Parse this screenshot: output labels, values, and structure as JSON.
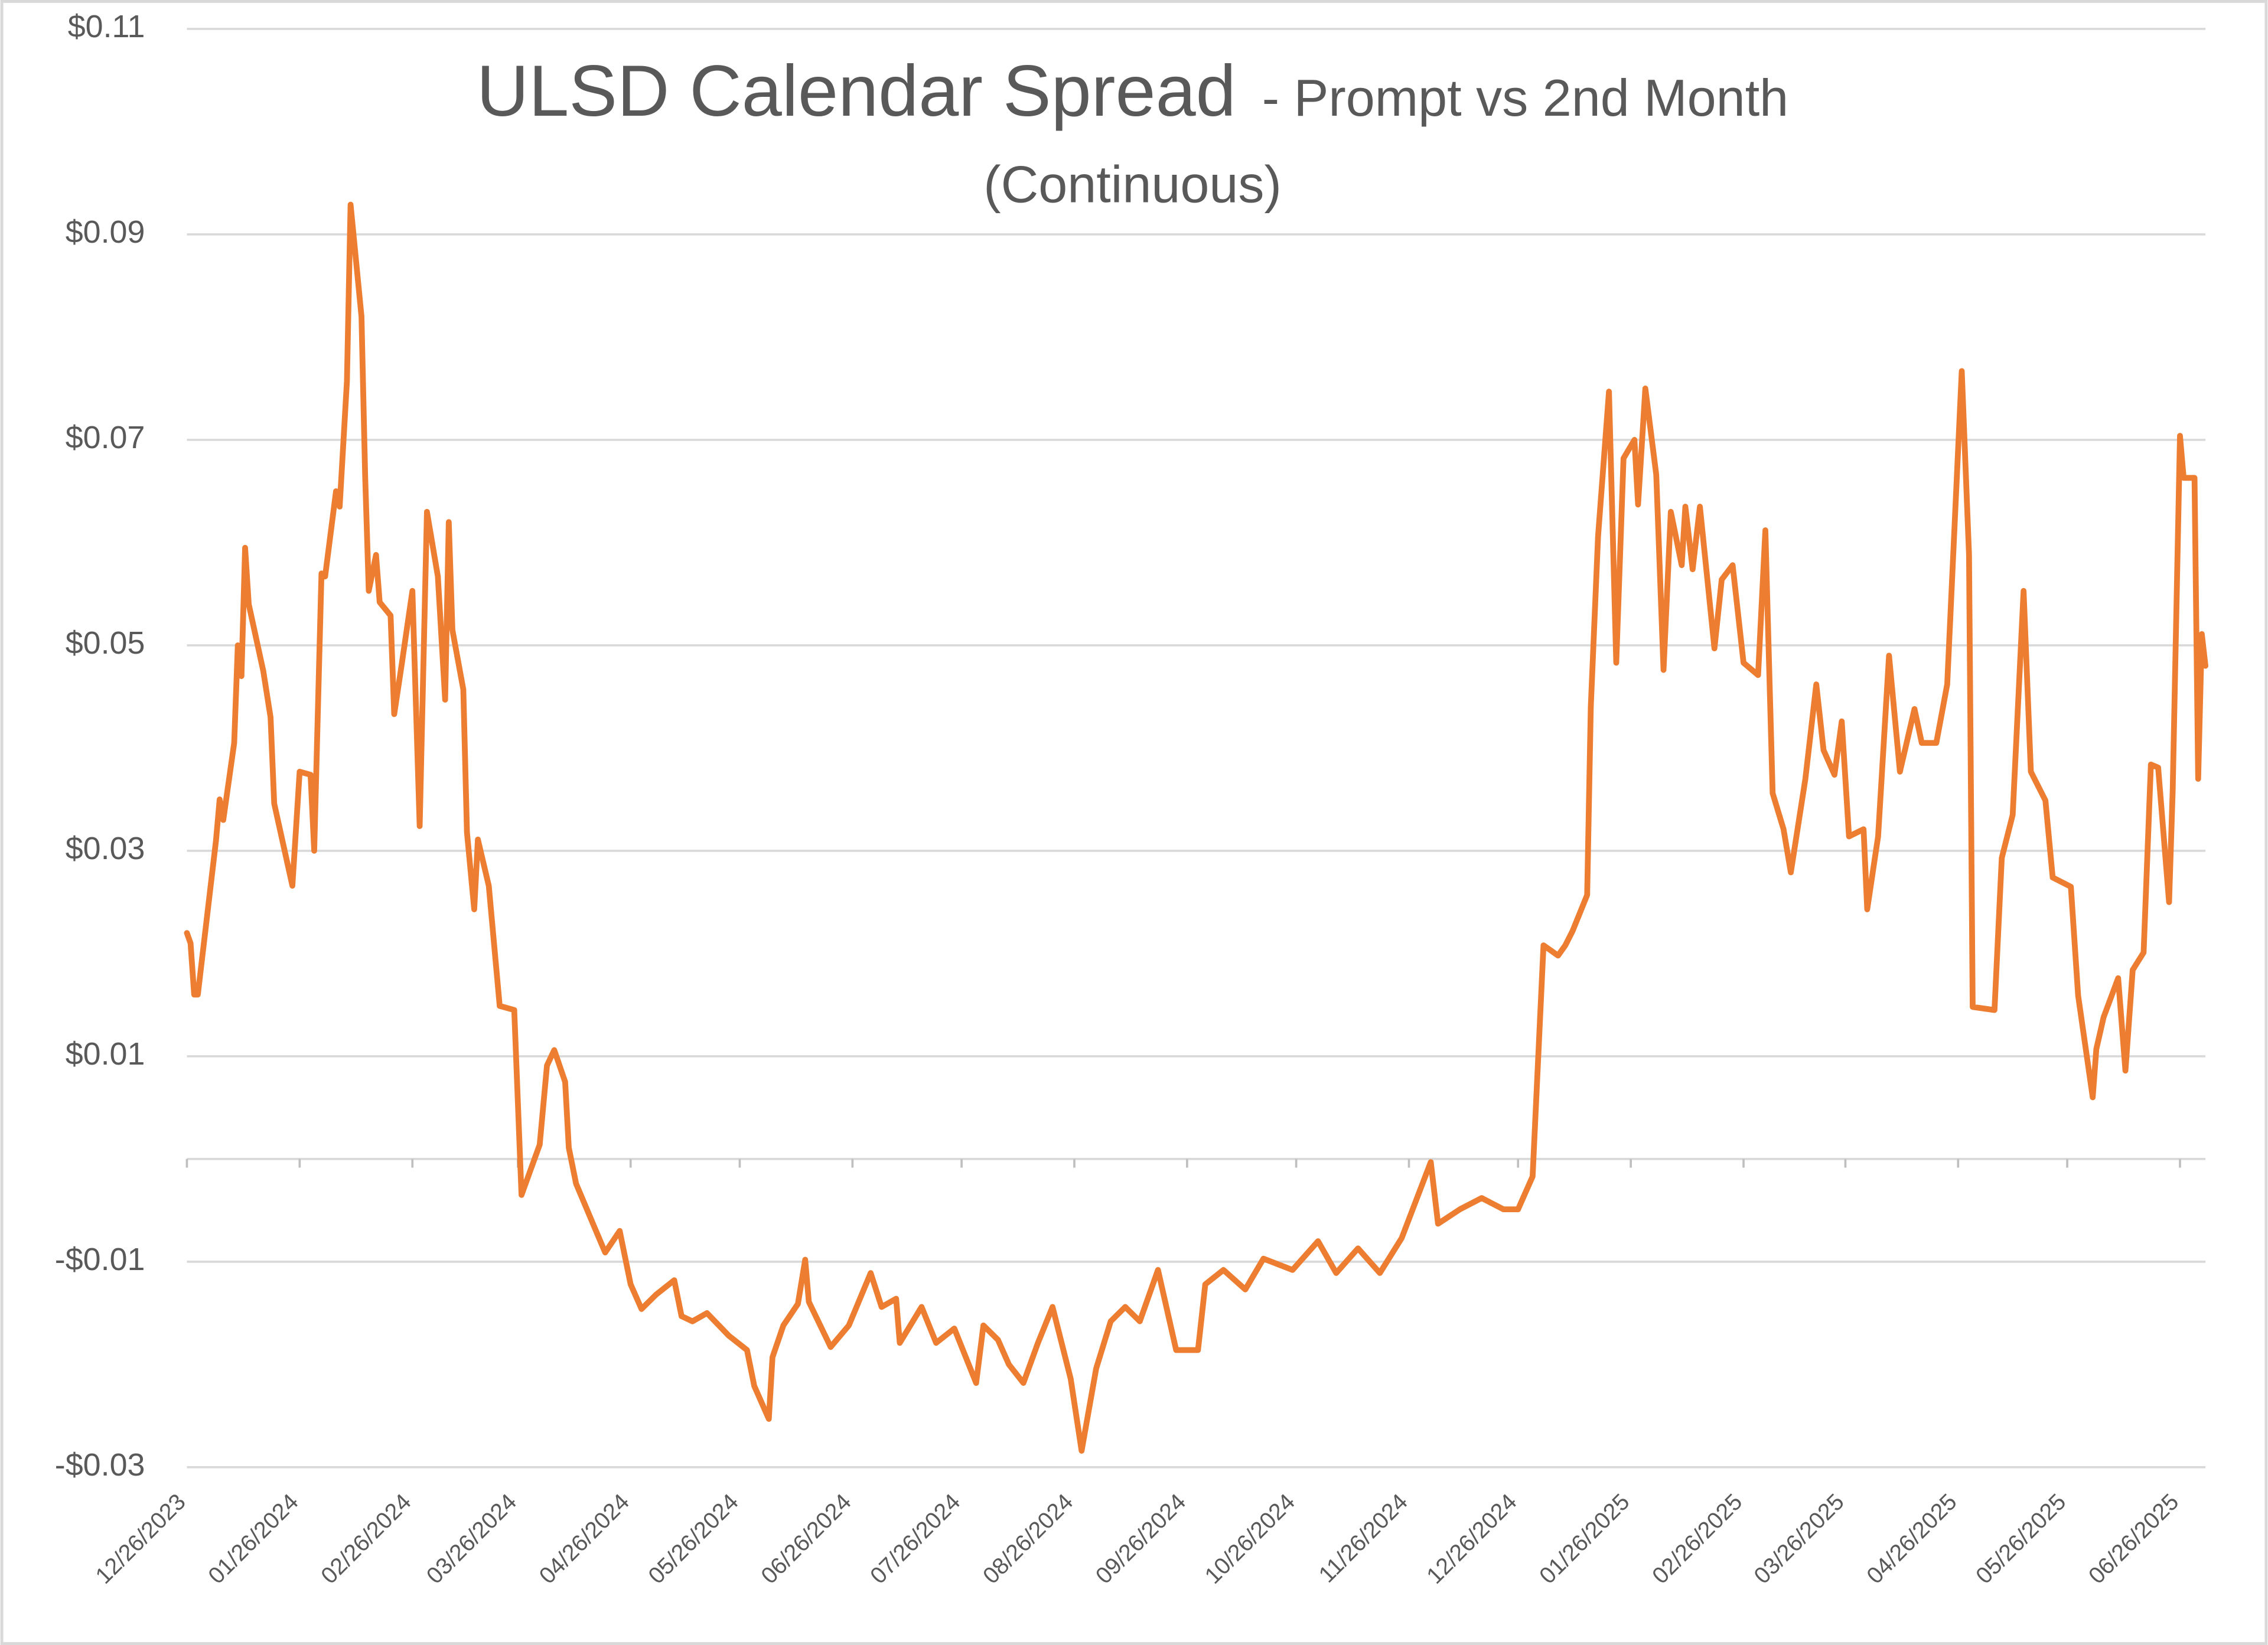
{
  "chart_data": {
    "type": "line",
    "title": "ULSD Calendar Spread",
    "subtitle": "- Prompt vs 2nd Month",
    "subtitle_2": "(Continuous)",
    "grid": true,
    "ylim": [
      -0.03,
      0.11
    ],
    "yticks": [
      {
        "value": -0.03,
        "label": "-$0.03"
      },
      {
        "value": -0.01,
        "label": "-$0.01"
      },
      {
        "value": 0.01,
        "label": "$0.01"
      },
      {
        "value": 0.03,
        "label": "$0.03"
      },
      {
        "value": 0.05,
        "label": "$0.05"
      },
      {
        "value": 0.07,
        "label": "$0.07"
      },
      {
        "value": 0.09,
        "label": "$0.09"
      },
      {
        "value": 0.11,
        "label": "$0.11"
      }
    ],
    "xlim": [
      "2023-12-26",
      "2025-07-03"
    ],
    "xticks": [
      {
        "value": "2023-12-26",
        "label": "12/26/2023"
      },
      {
        "value": "2024-01-26",
        "label": "01/26/2024"
      },
      {
        "value": "2024-02-26",
        "label": "02/26/2024"
      },
      {
        "value": "2024-03-26",
        "label": "03/26/2024"
      },
      {
        "value": "2024-04-26",
        "label": "04/26/2024"
      },
      {
        "value": "2024-05-26",
        "label": "05/26/2024"
      },
      {
        "value": "2024-06-26",
        "label": "06/26/2024"
      },
      {
        "value": "2024-07-26",
        "label": "07/26/2024"
      },
      {
        "value": "2024-08-26",
        "label": "08/26/2024"
      },
      {
        "value": "2024-09-26",
        "label": "09/26/2024"
      },
      {
        "value": "2024-10-26",
        "label": "10/26/2024"
      },
      {
        "value": "2024-11-26",
        "label": "11/26/2024"
      },
      {
        "value": "2024-12-26",
        "label": "12/26/2024"
      },
      {
        "value": "2025-01-26",
        "label": "01/26/2025"
      },
      {
        "value": "2025-02-26",
        "label": "02/26/2025"
      },
      {
        "value": "2025-03-26",
        "label": "03/26/2025"
      },
      {
        "value": "2025-04-26",
        "label": "04/26/2025"
      },
      {
        "value": "2025-05-26",
        "label": "05/26/2025"
      },
      {
        "value": "2025-06-26",
        "label": "06/26/2025"
      }
    ],
    "x": [
      "2023-12-26",
      "2023-12-27",
      "2023-12-28",
      "2023-12-29",
      "2024-01-03",
      "2024-01-04",
      "2024-01-05",
      "2024-01-08",
      "2024-01-09",
      "2024-01-10",
      "2024-01-11",
      "2024-01-12",
      "2024-01-16",
      "2024-01-18",
      "2024-01-19",
      "2024-01-24",
      "2024-01-26",
      "2024-01-29",
      "2024-01-30",
      "2024-02-01",
      "2024-02-02",
      "2024-02-05",
      "2024-02-06",
      "2024-02-08",
      "2024-02-09",
      "2024-02-12",
      "2024-02-13",
      "2024-02-14",
      "2024-02-16",
      "2024-02-17",
      "2024-02-20",
      "2024-02-21",
      "2024-02-23",
      "2024-02-26",
      "2024-02-28",
      "2024-03-01",
      "2024-03-04",
      "2024-03-06",
      "2024-03-07",
      "2024-03-08",
      "2024-03-11",
      "2024-03-12",
      "2024-03-14",
      "2024-03-15",
      "2024-03-18",
      "2024-03-21",
      "2024-03-25",
      "2024-03-27",
      "2024-04-01",
      "2024-04-03",
      "2024-04-05",
      "2024-04-08",
      "2024-04-09",
      "2024-04-11",
      "2024-04-16",
      "2024-04-19",
      "2024-04-23",
      "2024-04-26",
      "2024-04-29",
      "2024-05-03",
      "2024-05-08",
      "2024-05-10",
      "2024-05-13",
      "2024-05-17",
      "2024-05-23",
      "2024-05-28",
      "2024-05-30",
      "2024-06-03",
      "2024-06-04",
      "2024-06-07",
      "2024-06-11",
      "2024-06-13",
      "2024-06-14",
      "2024-06-20",
      "2024-06-25",
      "2024-07-01",
      "2024-07-04",
      "2024-07-08",
      "2024-07-09",
      "2024-07-15",
      "2024-07-19",
      "2024-07-24",
      "2024-07-30",
      "2024-08-01",
      "2024-08-05",
      "2024-08-08",
      "2024-08-12",
      "2024-08-16",
      "2024-08-20",
      "2024-08-25",
      "2024-08-28",
      "2024-09-01",
      "2024-09-05",
      "2024-09-09",
      "2024-09-13",
      "2024-09-18",
      "2024-09-23",
      "2024-09-29",
      "2024-10-01",
      "2024-10-06",
      "2024-10-12",
      "2024-10-17",
      "2024-10-25",
      "2024-11-01",
      "2024-11-06",
      "2024-11-12",
      "2024-11-18",
      "2024-11-24",
      "2024-12-02",
      "2024-12-04",
      "2024-12-10",
      "2024-12-16",
      "2024-12-22",
      "2024-12-26",
      "2024-12-30",
      "2025-01-02",
      "2025-01-06",
      "2025-01-08",
      "2025-01-10",
      "2025-01-14",
      "2025-01-15",
      "2025-01-17",
      "2025-01-20",
      "2025-01-22",
      "2025-01-24",
      "2025-01-27",
      "2025-01-28",
      "2025-01-30",
      "2025-02-02",
      "2025-02-04",
      "2025-02-06",
      "2025-02-09",
      "2025-02-10",
      "2025-02-12",
      "2025-02-14",
      "2025-02-18",
      "2025-02-20",
      "2025-02-23",
      "2025-02-26",
      "2025-03-02",
      "2025-03-04",
      "2025-03-06",
      "2025-03-09",
      "2025-03-11",
      "2025-03-15",
      "2025-03-18",
      "2025-03-20",
      "2025-03-23",
      "2025-03-25",
      "2025-03-27",
      "2025-03-31",
      "2025-04-01",
      "2025-04-04",
      "2025-04-07",
      "2025-04-10",
      "2025-04-14",
      "2025-04-16",
      "2025-04-20",
      "2025-04-23",
      "2025-04-27",
      "2025-04-29",
      "2025-04-30",
      "2025-05-06",
      "2025-05-08",
      "2025-05-11",
      "2025-05-14",
      "2025-05-16",
      "2025-05-20",
      "2025-05-22",
      "2025-05-27",
      "2025-05-29",
      "2025-06-02",
      "2025-06-03",
      "2025-06-05",
      "2025-06-09",
      "2025-06-11",
      "2025-06-13",
      "2025-06-16",
      "2025-06-18",
      "2025-06-20",
      "2025-06-23",
      "2025-06-24",
      "2025-06-26",
      "2025-06-27",
      "2025-06-30",
      "2025-07-01",
      "2025-07-02",
      "2025-07-03"
    ],
    "series": [
      {
        "color": "#ed7d31",
        "values": [
          0.022,
          0.021,
          0.016,
          0.016,
          0.031,
          0.035,
          0.033,
          0.0405,
          0.05,
          0.047,
          0.0595,
          0.054,
          0.0475,
          0.043,
          0.0346,
          0.0266,
          0.0377,
          0.0374,
          0.03,
          0.057,
          0.0567,
          0.065,
          0.0635,
          0.0757,
          0.0929,
          0.082,
          0.0666,
          0.0553,
          0.0588,
          0.0542,
          0.0529,
          0.0433,
          0.048,
          0.0553,
          0.0324,
          0.063,
          0.0567,
          0.0447,
          0.062,
          0.0515,
          0.0457,
          0.0318,
          0.0243,
          0.0311,
          0.0266,
          0.0149,
          0.0145,
          -0.0035,
          0.0014,
          0.0091,
          0.0106,
          0.0075,
          0.0011,
          -0.0024,
          -0.0066,
          -0.0091,
          -0.007,
          -0.0122,
          -0.0146,
          -0.0132,
          -0.0118,
          -0.0153,
          -0.0158,
          -0.015,
          -0.0172,
          -0.0186,
          -0.0221,
          -0.0253,
          -0.0193,
          -0.0162,
          -0.0141,
          -0.0098,
          -0.0139,
          -0.0183,
          -0.0162,
          -0.0111,
          -0.0144,
          -0.0136,
          -0.0179,
          -0.0144,
          -0.0179,
          -0.0165,
          -0.0218,
          -0.0162,
          -0.0176,
          -0.02,
          -0.0218,
          -0.0179,
          -0.0144,
          -0.0214,
          -0.0284,
          -0.0204,
          -0.0158,
          -0.0144,
          -0.0158,
          -0.0108,
          -0.0186,
          -0.0186,
          -0.0122,
          -0.0108,
          -0.0127,
          -0.0097,
          -0.0108,
          -0.008,
          -0.0111,
          -0.0087,
          -0.0111,
          -0.0077,
          -0.0003,
          -0.0063,
          -0.0049,
          -0.0038,
          -0.0049,
          -0.0049,
          -0.0017,
          0.0208,
          0.0198,
          0.0208,
          0.0222,
          0.0257,
          0.044,
          0.0606,
          0.0747,
          0.0483,
          0.0682,
          0.07,
          0.0637,
          0.075,
          0.0666,
          0.0476,
          0.063,
          0.0578,
          0.0635,
          0.0574,
          0.0635,
          0.0497,
          0.0564,
          0.0578,
          0.0483,
          0.0471,
          0.0612,
          0.0356,
          0.0321,
          0.0279,
          0.037,
          0.0462,
          0.0398,
          0.0374,
          0.0426,
          0.0314,
          0.0321,
          0.0243,
          0.0314,
          0.049,
          0.0377,
          0.0438,
          0.0405,
          0.0405,
          0.0462,
          0.0767,
          0.0588,
          0.0148,
          0.0145,
          0.0293,
          0.0335,
          0.0553,
          0.0377,
          0.0349,
          0.0274,
          0.0265,
          0.0159,
          0.006,
          0.0107,
          0.0138,
          0.0176,
          0.0086,
          0.0184,
          0.0201,
          0.0384,
          0.0381,
          0.025,
          0.0359,
          0.0704,
          0.0663,
          0.0663,
          0.037,
          0.0511,
          0.048
        ]
      }
    ]
  }
}
